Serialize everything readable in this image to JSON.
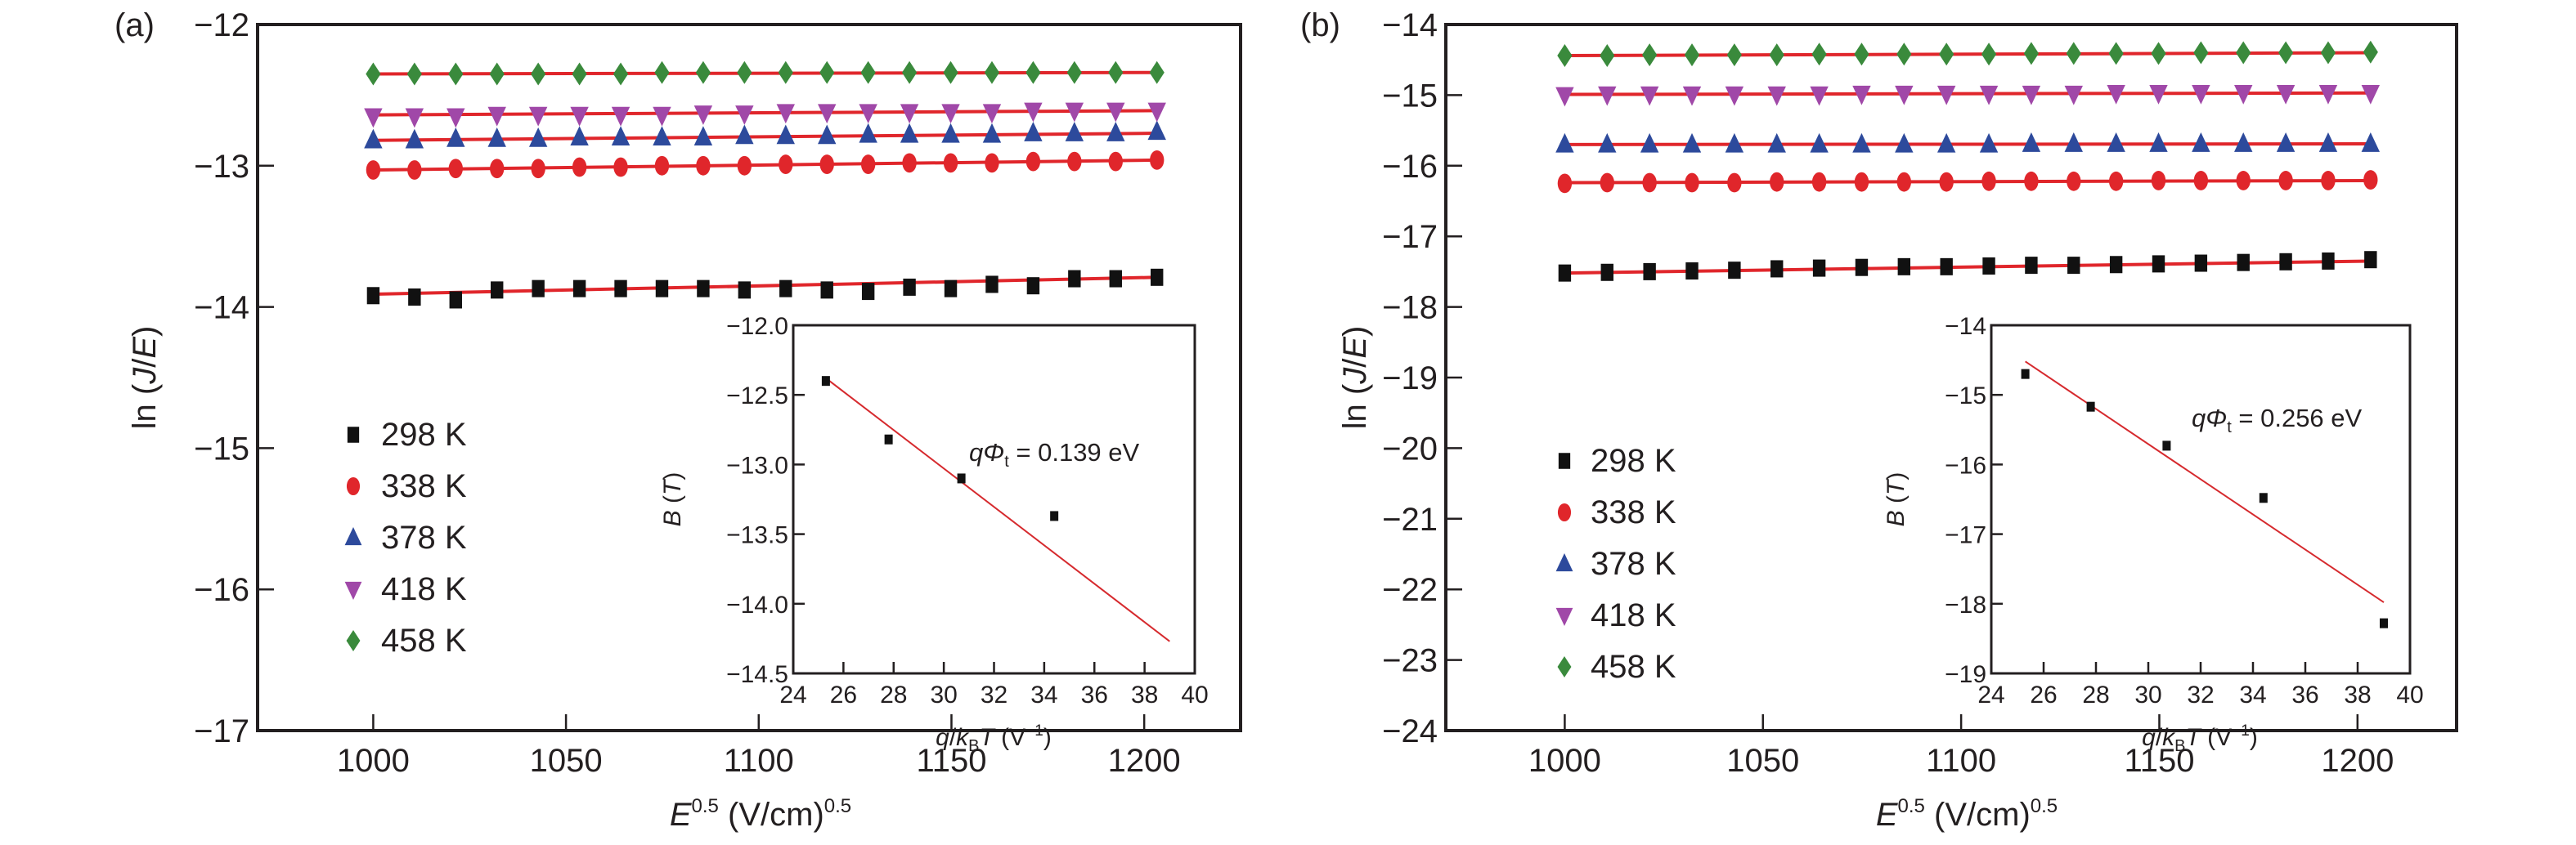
{
  "chart_data": [
    {
      "type": "scatter",
      "panel_label": "(a)",
      "xlabel": "E^0.5 (V/cm)^0.5",
      "xlabel_parts": {
        "main": "E",
        "sup": "0.5",
        "units": " (V/cm)",
        "units_sup": "0.5"
      },
      "ylabel": "ln (J/E)",
      "ylabel_parts": {
        "prefix": "ln (",
        "j": "J",
        "slash": "/",
        "e": "E",
        "suffix": ")"
      },
      "xlim": [
        970,
        1225
      ],
      "ylim": [
        -17,
        -12
      ],
      "xticks": [
        1000,
        1050,
        1100,
        1150,
        1200
      ],
      "xtick_labels": [
        "1000",
        "1050",
        "1100",
        "1150",
        "1200"
      ],
      "yticks": [
        -12,
        -13,
        -14,
        -15,
        -16,
        -17
      ],
      "ytick_labels": [
        "−12",
        "−13",
        "−14",
        "−15",
        "−16",
        "−17"
      ],
      "grid": false,
      "legend_position": "lower-left",
      "fit_color": "#e0262b",
      "series": [
        {
          "name": "298 K",
          "marker": "square",
          "color": "#111111",
          "x": [
            1000,
            1010.7,
            1021.4,
            1032.1,
            1042.8,
            1053.5,
            1064.2,
            1074.9,
            1085.6,
            1096.3,
            1107,
            1117.7,
            1128.4,
            1139.1,
            1149.8,
            1160.5,
            1171.2,
            1181.9,
            1192.6,
            1203.3
          ],
          "y": [
            -13.92,
            -13.93,
            -13.95,
            -13.88,
            -13.87,
            -13.87,
            -13.87,
            -13.87,
            -13.87,
            -13.88,
            -13.87,
            -13.88,
            -13.89,
            -13.86,
            -13.87,
            -13.84,
            -13.85,
            -13.8,
            -13.8,
            -13.79
          ],
          "fit": [
            -13.91,
            -13.79
          ]
        },
        {
          "name": "338 K",
          "marker": "circle",
          "color": "#e0262b",
          "x": [
            1000,
            1010.7,
            1021.4,
            1032.1,
            1042.8,
            1053.5,
            1064.2,
            1074.9,
            1085.6,
            1096.3,
            1107,
            1117.7,
            1128.4,
            1139.1,
            1149.8,
            1160.5,
            1171.2,
            1181.9,
            1192.6,
            1203.3
          ],
          "y": [
            -13.03,
            -13.03,
            -13.02,
            -13.02,
            -13.02,
            -13.01,
            -13.01,
            -13.0,
            -13.0,
            -13.0,
            -12.99,
            -12.99,
            -12.99,
            -12.98,
            -12.98,
            -12.98,
            -12.97,
            -12.97,
            -12.97,
            -12.96
          ],
          "fit": [
            -13.03,
            -12.96
          ]
        },
        {
          "name": "378 K",
          "marker": "triangle-up",
          "color": "#2d4a9c",
          "x": [
            1000,
            1010.7,
            1021.4,
            1032.1,
            1042.8,
            1053.5,
            1064.2,
            1074.9,
            1085.6,
            1096.3,
            1107,
            1117.7,
            1128.4,
            1139.1,
            1149.8,
            1160.5,
            1171.2,
            1181.9,
            1192.6,
            1203.3
          ],
          "y": [
            -12.82,
            -12.82,
            -12.81,
            -12.81,
            -12.81,
            -12.8,
            -12.8,
            -12.8,
            -12.8,
            -12.79,
            -12.79,
            -12.79,
            -12.78,
            -12.78,
            -12.78,
            -12.78,
            -12.77,
            -12.77,
            -12.77,
            -12.76
          ],
          "fit": [
            -12.82,
            -12.77
          ]
        },
        {
          "name": "418 K",
          "marker": "triangle-down",
          "color": "#a048a8",
          "x": [
            1000,
            1010.7,
            1021.4,
            1032.1,
            1042.8,
            1053.5,
            1064.2,
            1074.9,
            1085.6,
            1096.3,
            1107,
            1117.7,
            1128.4,
            1139.1,
            1149.8,
            1160.5,
            1171.2,
            1181.9,
            1192.6,
            1203.3
          ],
          "y": [
            -12.65,
            -12.65,
            -12.65,
            -12.64,
            -12.64,
            -12.64,
            -12.64,
            -12.64,
            -12.63,
            -12.63,
            -12.62,
            -12.62,
            -12.62,
            -12.62,
            -12.62,
            -12.62,
            -12.61,
            -12.61,
            -12.61,
            -12.61
          ],
          "fit": [
            -12.64,
            -12.61
          ]
        },
        {
          "name": "458 K",
          "marker": "diamond",
          "color": "#3a8a3c",
          "x": [
            1000,
            1010.7,
            1021.4,
            1032.1,
            1042.8,
            1053.5,
            1064.2,
            1074.9,
            1085.6,
            1096.3,
            1107,
            1117.7,
            1128.4,
            1139.1,
            1149.8,
            1160.5,
            1171.2,
            1181.9,
            1192.6,
            1203.3
          ],
          "y": [
            -12.35,
            -12.35,
            -12.35,
            -12.35,
            -12.35,
            -12.35,
            -12.35,
            -12.34,
            -12.34,
            -12.34,
            -12.34,
            -12.34,
            -12.34,
            -12.34,
            -12.34,
            -12.34,
            -12.34,
            -12.34,
            -12.34,
            -12.34
          ],
          "fit": [
            -12.35,
            -12.34
          ]
        }
      ],
      "inset": {
        "type": "scatter",
        "xlabel": "q/kBT (V^-1)",
        "xlabel_parts": {
          "q": "q",
          "slash": "/",
          "k": "k",
          "sub": "B",
          "t": "T",
          "units": " (V",
          "units_sup": "−1",
          "close": ")"
        },
        "ylabel": "B (T)",
        "ylabel_parts": {
          "b": "B",
          "open": " (",
          "t": "T",
          "close": ")"
        },
        "xlim": [
          24,
          40
        ],
        "ylim": [
          -14.5,
          -12.0
        ],
        "xticks": [
          24,
          26,
          28,
          30,
          32,
          34,
          36,
          38,
          40
        ],
        "xtick_labels": [
          "24",
          "26",
          "28",
          "30",
          "32",
          "34",
          "36",
          "38",
          "40"
        ],
        "yticks": [
          -12.0,
          -12.5,
          -13.0,
          -13.5,
          -14.0,
          -14.5
        ],
        "ytick_labels": [
          "−12.0",
          "−12.5",
          "−13.0",
          "−13.5",
          "−14.0",
          "−14.5"
        ],
        "points": {
          "x": [
            25.3,
            27.8,
            30.7,
            34.4
          ],
          "y": [
            -12.4,
            -12.82,
            -13.1,
            -13.37
          ]
        },
        "fit": {
          "x": [
            25.3,
            39.0
          ],
          "y": [
            -12.38,
            -14.27
          ]
        },
        "annotation": {
          "prefix": "q",
          "phi": "Φ",
          "sub": "t",
          "text": " = 0.139 eV",
          "full": "qΦt = 0.139 eV"
        }
      }
    },
    {
      "type": "scatter",
      "panel_label": "(b)",
      "xlabel": "E^0.5 (V/cm)^0.5",
      "xlabel_parts": {
        "main": "E",
        "sup": "0.5",
        "units": " (V/cm)",
        "units_sup": "0.5"
      },
      "ylabel": "ln (J/E)",
      "ylabel_parts": {
        "prefix": "ln (",
        "j": "J",
        "slash": "/",
        "e": "E",
        "suffix": ")"
      },
      "xlim": [
        970,
        1225
      ],
      "ylim": [
        -24,
        -14
      ],
      "xticks": [
        1000,
        1050,
        1100,
        1150,
        1200
      ],
      "xtick_labels": [
        "1000",
        "1050",
        "1100",
        "1150",
        "1200"
      ],
      "yticks": [
        -14,
        -15,
        -16,
        -17,
        -18,
        -19,
        -20,
        -21,
        -22,
        -23,
        -24
      ],
      "ytick_labels": [
        "−14",
        "−15",
        "−16",
        "−17",
        "−18",
        "−19",
        "−20",
        "−21",
        "−22",
        "−23",
        "−24"
      ],
      "grid": false,
      "legend_position": "lower-left",
      "fit_color": "#e0262b",
      "series": [
        {
          "name": "298 K",
          "marker": "square",
          "color": "#111111",
          "x": [
            1000,
            1010.7,
            1021.4,
            1032.1,
            1042.8,
            1053.5,
            1064.2,
            1074.9,
            1085.6,
            1096.3,
            1107,
            1117.7,
            1128.4,
            1139.1,
            1149.8,
            1160.5,
            1171.2,
            1181.9,
            1192.6,
            1203.3
          ],
          "y": [
            -17.52,
            -17.51,
            -17.5,
            -17.49,
            -17.48,
            -17.46,
            -17.45,
            -17.44,
            -17.43,
            -17.43,
            -17.42,
            -17.41,
            -17.41,
            -17.4,
            -17.39,
            -17.38,
            -17.37,
            -17.36,
            -17.35,
            -17.33
          ],
          "fit": [
            -17.52,
            -17.35
          ]
        },
        {
          "name": "338 K",
          "marker": "circle",
          "color": "#e0262b",
          "x": [
            1000,
            1010.7,
            1021.4,
            1032.1,
            1042.8,
            1053.5,
            1064.2,
            1074.9,
            1085.6,
            1096.3,
            1107,
            1117.7,
            1128.4,
            1139.1,
            1149.8,
            1160.5,
            1171.2,
            1181.9,
            1192.6,
            1203.3
          ],
          "y": [
            -16.25,
            -16.24,
            -16.24,
            -16.24,
            -16.24,
            -16.23,
            -16.23,
            -16.23,
            -16.23,
            -16.23,
            -16.22,
            -16.22,
            -16.22,
            -16.22,
            -16.21,
            -16.21,
            -16.21,
            -16.21,
            -16.21,
            -16.2
          ],
          "fit": [
            -16.24,
            -16.21
          ]
        },
        {
          "name": "378 K",
          "marker": "triangle-up",
          "color": "#2d4a9c",
          "x": [
            1000,
            1010.7,
            1021.4,
            1032.1,
            1042.8,
            1053.5,
            1064.2,
            1074.9,
            1085.6,
            1096.3,
            1107,
            1117.7,
            1128.4,
            1139.1,
            1149.8,
            1160.5,
            1171.2,
            1181.9,
            1192.6,
            1203.3
          ],
          "y": [
            -15.7,
            -15.7,
            -15.7,
            -15.7,
            -15.7,
            -15.7,
            -15.7,
            -15.7,
            -15.7,
            -15.7,
            -15.7,
            -15.69,
            -15.69,
            -15.69,
            -15.69,
            -15.69,
            -15.69,
            -15.69,
            -15.69,
            -15.69
          ],
          "fit": [
            -15.7,
            -15.69
          ]
        },
        {
          "name": "418 K",
          "marker": "triangle-down",
          "color": "#a048a8",
          "x": [
            1000,
            1010.7,
            1021.4,
            1032.1,
            1042.8,
            1053.5,
            1064.2,
            1074.9,
            1085.6,
            1096.3,
            1107,
            1117.7,
            1128.4,
            1139.1,
            1149.8,
            1160.5,
            1171.2,
            1181.9,
            1192.6,
            1203.3
          ],
          "y": [
            -15.0,
            -14.99,
            -14.99,
            -14.99,
            -14.99,
            -14.99,
            -14.99,
            -14.98,
            -14.98,
            -14.98,
            -14.98,
            -14.98,
            -14.98,
            -14.97,
            -14.97,
            -14.97,
            -14.97,
            -14.97,
            -14.97,
            -14.97
          ],
          "fit": [
            -14.99,
            -14.97
          ]
        },
        {
          "name": "458 K",
          "marker": "diamond",
          "color": "#3a8a3c",
          "x": [
            1000,
            1010.7,
            1021.4,
            1032.1,
            1042.8,
            1053.5,
            1064.2,
            1074.9,
            1085.6,
            1096.3,
            1107,
            1117.7,
            1128.4,
            1139.1,
            1149.8,
            1160.5,
            1171.2,
            1181.9,
            1192.6,
            1203.3
          ],
          "y": [
            -14.44,
            -14.44,
            -14.43,
            -14.43,
            -14.43,
            -14.43,
            -14.42,
            -14.42,
            -14.42,
            -14.42,
            -14.42,
            -14.41,
            -14.41,
            -14.41,
            -14.41,
            -14.4,
            -14.4,
            -14.4,
            -14.4,
            -14.39
          ],
          "fit": [
            -14.44,
            -14.4
          ]
        }
      ],
      "inset": {
        "type": "scatter",
        "xlabel": "q/kBT (V^-1)",
        "xlabel_parts": {
          "q": "q",
          "slash": "/",
          "k": "k",
          "sub": "B",
          "t": "T",
          "units": " (V",
          "units_sup": "−1",
          "close": ")"
        },
        "ylabel": "B (T)",
        "ylabel_parts": {
          "b": "B",
          "open": " (",
          "t": "T",
          "close": ")"
        },
        "xlim": [
          24,
          40
        ],
        "ylim": [
          -19,
          -14
        ],
        "xticks": [
          24,
          26,
          28,
          30,
          32,
          34,
          36,
          38,
          40
        ],
        "xtick_labels": [
          "24",
          "26",
          "28",
          "30",
          "32",
          "34",
          "36",
          "38",
          "40"
        ],
        "yticks": [
          -14,
          -15,
          -16,
          -17,
          -18,
          -19
        ],
        "ytick_labels": [
          "−14",
          "−15",
          "−16",
          "−17",
          "−18",
          "−19"
        ],
        "points": {
          "x": [
            25.3,
            27.8,
            30.7,
            34.4,
            39.0
          ],
          "y": [
            -14.7,
            -15.17,
            -15.73,
            -16.48,
            -18.28
          ]
        },
        "fit": {
          "x": [
            25.3,
            39.0
          ],
          "y": [
            -14.52,
            -17.98
          ]
        },
        "annotation": {
          "prefix": "q",
          "phi": "Φ",
          "sub": "t",
          "text": " = 0.256 eV",
          "full": "qΦt = 0.256 eV"
        }
      }
    }
  ]
}
